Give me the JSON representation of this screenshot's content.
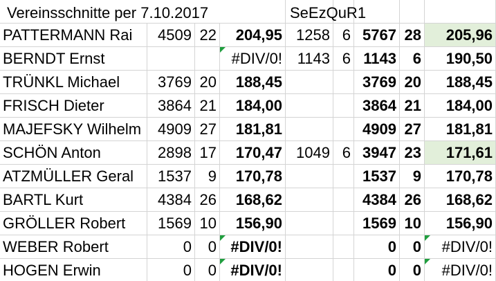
{
  "header": {
    "title": "Vereinsschnitte per 7.10.2017",
    "code": "SeEzQuR1"
  },
  "table": {
    "rows": [
      [
        "PATTERMANN Rai",
        "4509",
        "22",
        "204,95",
        "1258",
        "6",
        "5767",
        "28",
        "205,96"
      ],
      [
        "BERNDT Ernst",
        null,
        null,
        "#DIV/0!",
        "1143",
        "6",
        "1143",
        "6",
        "190,50"
      ],
      [
        "TRÜNKL Michael",
        "3769",
        "20",
        "188,45",
        null,
        null,
        "3769",
        "20",
        "188,45"
      ],
      [
        "FRISCH Dieter",
        "3864",
        "21",
        "184,00",
        null,
        null,
        "3864",
        "21",
        "184,00"
      ],
      [
        "MAJEFSKY Wilhelm",
        "4909",
        "27",
        "181,81",
        null,
        null,
        "4909",
        "27",
        "181,81"
      ],
      [
        "SCHÖN Anton",
        "2898",
        "17",
        "170,47",
        "1049",
        "6",
        "3947",
        "23",
        "171,61"
      ],
      [
        "ATZMÜLLER Geral",
        "1537",
        "9",
        "170,78",
        null,
        null,
        "1537",
        "9",
        "170,78"
      ],
      [
        "BARTL Kurt",
        "4384",
        "26",
        "168,62",
        null,
        null,
        "4384",
        "26",
        "168,62"
      ],
      [
        "GRÖLLER Robert",
        "1569",
        "10",
        "156,90",
        null,
        null,
        "1569",
        "10",
        "156,90"
      ],
      [
        "WEBER Robert",
        "0",
        "0",
        "#DIV/0!",
        null,
        null,
        "0",
        "0",
        "#DIV/0!"
      ],
      [
        "HOGEN Erwin",
        "0",
        "0",
        "#DIV/0!",
        null,
        null,
        "0",
        "0",
        "#DIV/0!"
      ]
    ]
  }
}
